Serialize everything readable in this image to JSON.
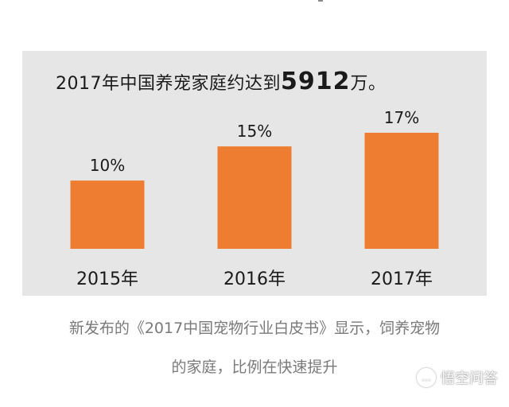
{
  "chart_data": {
    "type": "bar",
    "title_prefix": "2017年中国养宠家庭约达到",
    "title_number": "5912",
    "title_suffix": "万。",
    "categories": [
      "2015年",
      "2016年",
      "2017年"
    ],
    "values": [
      10,
      15,
      17
    ],
    "data_labels": [
      "10%",
      "15%",
      "17%"
    ],
    "ylim": [
      0,
      17
    ],
    "colors": {
      "bar": "#ee7d32",
      "panel": "#e6e6e6"
    },
    "grid": false,
    "legend": "none"
  },
  "caption": {
    "line1": "新发布的《2017中国宠物行业白皮书》显示，饲养宠物",
    "line2": "的家庭，比例在快速提升"
  },
  "watermark": {
    "icon": "chat-bubble-icon",
    "text": "悟空问答"
  }
}
